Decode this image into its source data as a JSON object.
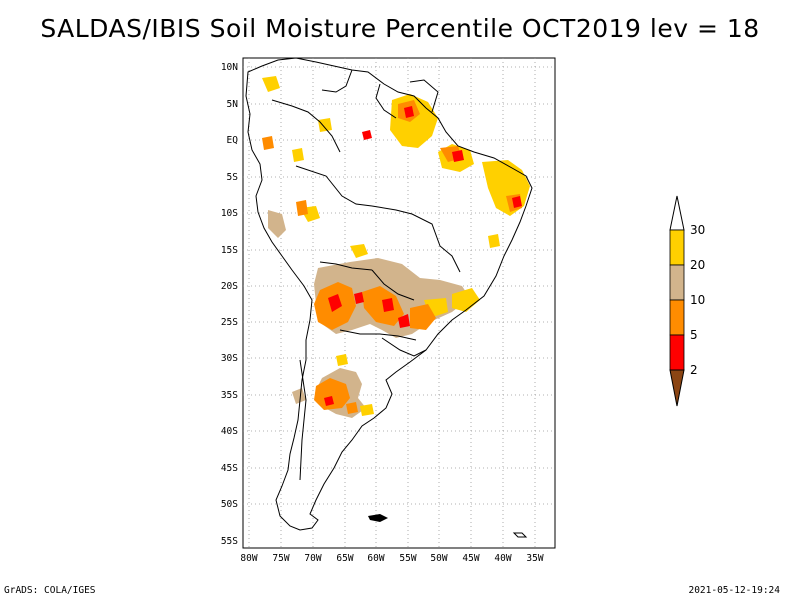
{
  "title": "SALDAS/IBIS Soil Moisture Percentile OCT2019 lev = 18",
  "map": {
    "lat_ticks": [
      "10N",
      "5N",
      "EQ",
      "5S",
      "10S",
      "15S",
      "20S",
      "25S",
      "30S",
      "35S",
      "40S",
      "45S",
      "50S",
      "55S"
    ],
    "lon_ticks": [
      "80W",
      "75W",
      "70W",
      "65W",
      "60W",
      "55W",
      "50W",
      "45W",
      "40W",
      "35W"
    ],
    "lat_range": [
      -56,
      11
    ],
    "lon_range": [
      -81,
      -30
    ],
    "grid": true
  },
  "colorbar": {
    "labels": [
      "30",
      "20",
      "10",
      "5",
      "2"
    ],
    "colors": {
      "c30": "#ffd000",
      "c20": "#d2b48c",
      "c10": "#ff8c00",
      "c5": "#ff0000",
      "c2": "#8b4513"
    }
  },
  "footer": {
    "left": "GrADS: COLA/IGES",
    "right": "2021-05-12-19:24"
  }
}
